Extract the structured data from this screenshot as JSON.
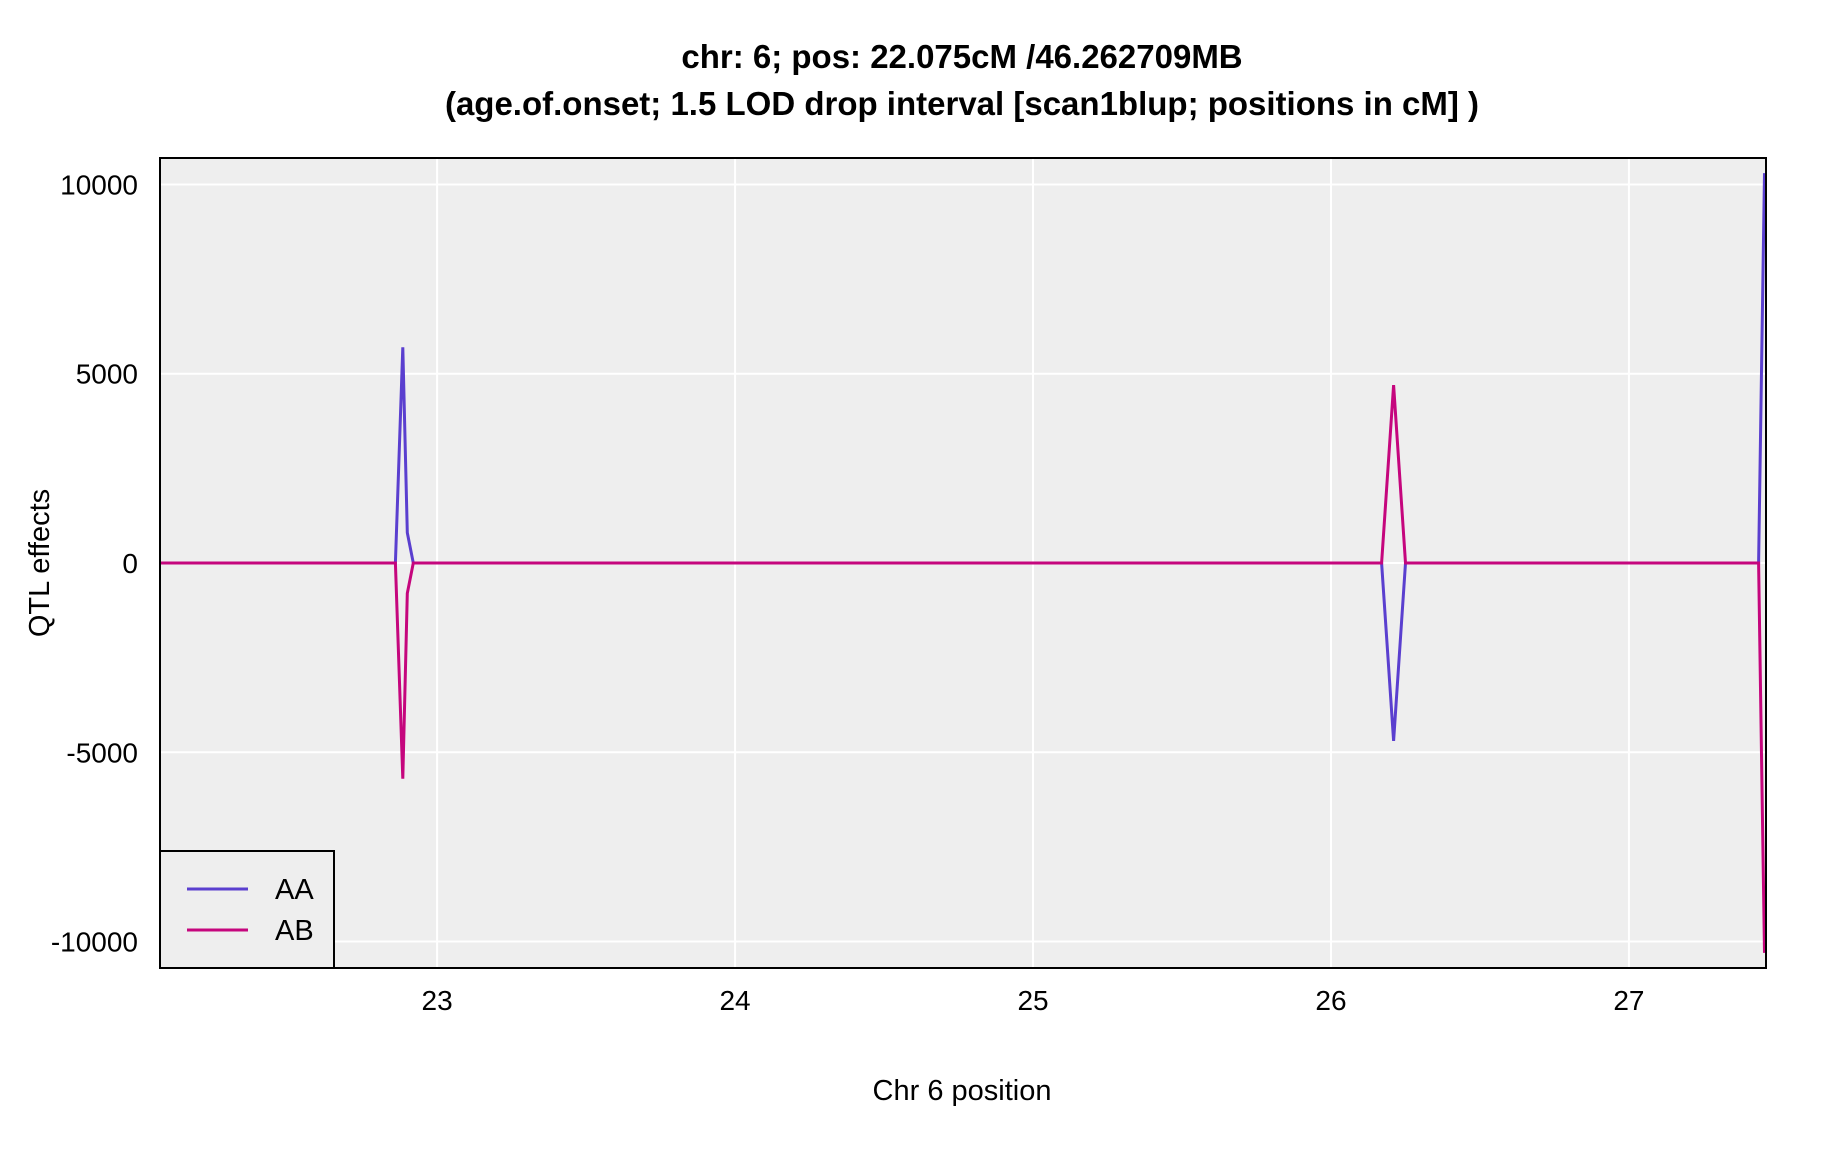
{
  "chart_data": {
    "type": "line",
    "title": "chr: 6; pos: 22.075cM /46.262709MB",
    "subtitle": "(age.of.onset; 1.5 LOD drop interval [scan1blup; positions in cM] )",
    "xlabel": "Chr 6 position",
    "ylabel": "QTL effects",
    "xlim": [
      22.07,
      27.46
    ],
    "ylim": [
      -10700,
      10700
    ],
    "x_ticks": [
      23,
      24,
      25,
      26,
      27
    ],
    "x_tick_labels": [
      "23",
      "24",
      "25",
      "26",
      "27"
    ],
    "y_ticks": [
      -10000,
      -5000,
      0,
      5000,
      10000
    ],
    "y_tick_labels": [
      "-10000",
      "-5000",
      "0",
      "5000",
      "10000"
    ],
    "grid": true,
    "background": "#eeeeee",
    "legend_position": "bottom-left",
    "series": [
      {
        "name": "AA",
        "color": "#5a3fcf",
        "x": [
          22.07,
          22.86,
          22.885,
          22.9,
          22.92,
          26.17,
          26.21,
          26.25,
          27.435,
          27.455
        ],
        "y": [
          0,
          0,
          5700,
          800,
          0,
          0,
          -4700,
          0,
          0,
          10300
        ]
      },
      {
        "name": "AB",
        "color": "#c5067d",
        "x": [
          22.07,
          22.86,
          22.885,
          22.9,
          22.92,
          26.17,
          26.21,
          26.25,
          27.435,
          27.455
        ],
        "y": [
          0,
          0,
          -5700,
          -800,
          0,
          0,
          4700,
          0,
          0,
          -10300
        ]
      }
    ]
  }
}
